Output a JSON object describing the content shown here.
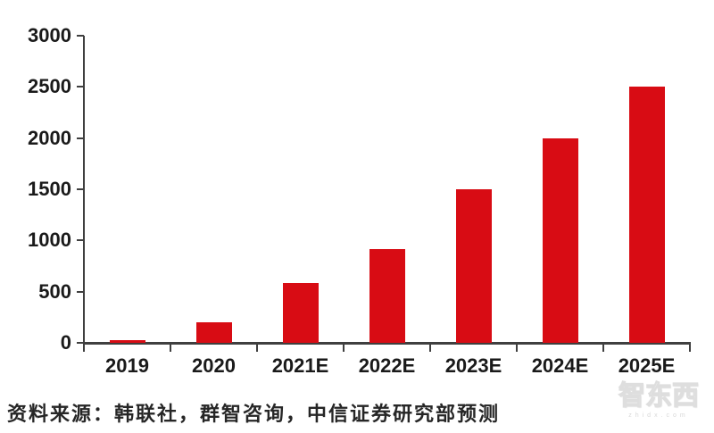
{
  "chart_data": {
    "type": "bar",
    "title": "",
    "categories": [
      "2019",
      "2020",
      "2021E",
      "2022E",
      "2023E",
      "2024E",
      "2025E"
    ],
    "values": [
      30,
      200,
      580,
      920,
      1500,
      2000,
      2500
    ],
    "yticks": [
      0,
      500,
      1000,
      1500,
      2000,
      2500,
      3000
    ],
    "ylim": [
      0,
      3000
    ],
    "xlabel": "",
    "ylabel": "",
    "grid": false,
    "legend": "none",
    "bar_color": "#d80c14",
    "axis_color": "#3f3f3f",
    "tick_label_color": "#1a1a1a"
  },
  "footer": {
    "source": "资料来源：韩联社，群智咨询，中信证券研究部预测",
    "watermark_text": "智东西",
    "watermark_url": "zhidx.com"
  }
}
